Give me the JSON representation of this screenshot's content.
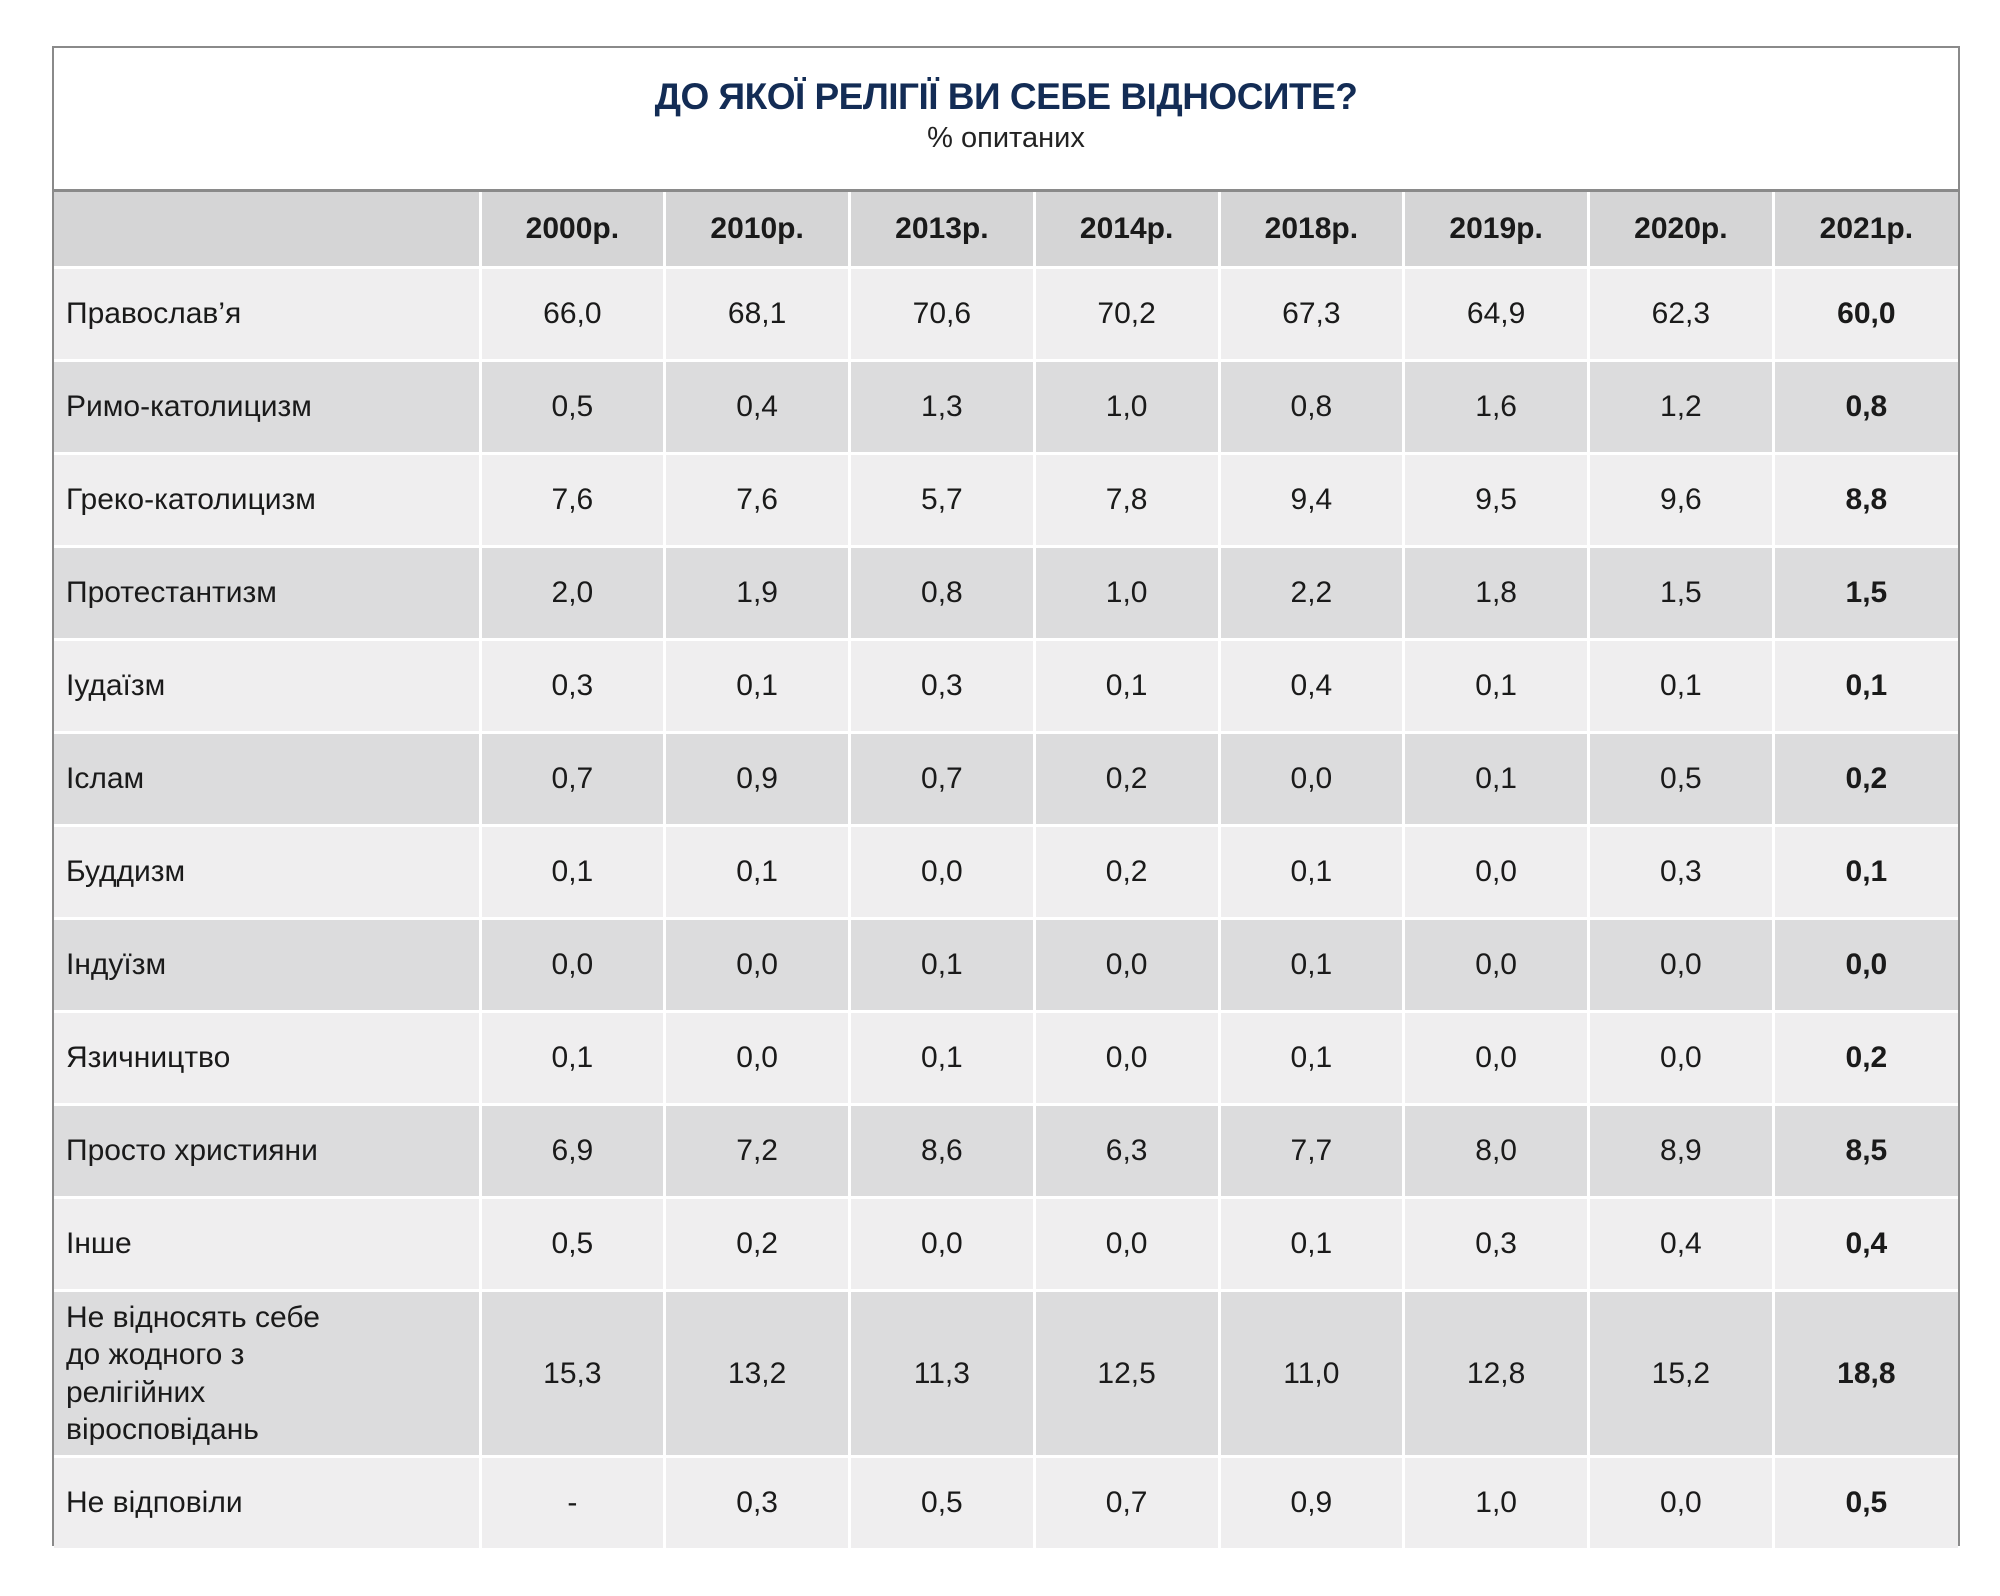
{
  "title": "ДО ЯКОЇ РЕЛІГІЇ ВИ СЕБЕ ВІДНОСИТЕ?",
  "subtitle": "% опитаних",
  "columns": [
    "2000р.",
    "2010р.",
    "2013р.",
    "2014р.",
    "2018р.",
    "2019р.",
    "2020р.",
    "2021р."
  ],
  "rows": [
    {
      "label": "Православ’я",
      "values": [
        "66,0",
        "68,1",
        "70,6",
        "70,2",
        "67,3",
        "64,9",
        "62,3",
        "60,0"
      ]
    },
    {
      "label": "Римо-католицизм",
      "values": [
        "0,5",
        "0,4",
        "1,3",
        "1,0",
        "0,8",
        "1,6",
        "1,2",
        "0,8"
      ]
    },
    {
      "label": "Греко-католицизм",
      "values": [
        "7,6",
        "7,6",
        "5,7",
        "7,8",
        "9,4",
        "9,5",
        "9,6",
        "8,8"
      ]
    },
    {
      "label": "Протестантизм",
      "values": [
        "2,0",
        "1,9",
        "0,8",
        "1,0",
        "2,2",
        "1,8",
        "1,5",
        "1,5"
      ]
    },
    {
      "label": "Іудаїзм",
      "values": [
        "0,3",
        "0,1",
        "0,3",
        "0,1",
        "0,4",
        "0,1",
        "0,1",
        "0,1"
      ]
    },
    {
      "label": "Іслам",
      "values": [
        "0,7",
        "0,9",
        "0,7",
        "0,2",
        "0,0",
        "0,1",
        "0,5",
        "0,2"
      ]
    },
    {
      "label": "Буддизм",
      "values": [
        "0,1",
        "0,1",
        "0,0",
        "0,2",
        "0,1",
        "0,0",
        "0,3",
        "0,1"
      ]
    },
    {
      "label": "Індуїзм",
      "values": [
        "0,0",
        "0,0",
        "0,1",
        "0,0",
        "0,1",
        "0,0",
        "0,0",
        "0,0"
      ]
    },
    {
      "label": "Язичництво",
      "values": [
        "0,1",
        "0,0",
        "0,1",
        "0,0",
        "0,1",
        "0,0",
        "0,0",
        "0,2"
      ]
    },
    {
      "label": "Просто християни",
      "values": [
        "6,9",
        "7,2",
        "8,6",
        "6,3",
        "7,7",
        "8,0",
        "8,9",
        "8,5"
      ]
    },
    {
      "label": "Інше",
      "values": [
        "0,5",
        "0,2",
        "0,0",
        "0,0",
        "0,1",
        "0,3",
        "0,4",
        "0,4"
      ]
    },
    {
      "label": "Не відносять себе до жодного з релігійних віросповідань",
      "values": [
        "15,3",
        "13,2",
        "11,3",
        "12,5",
        "11,0",
        "12,8",
        "15,2",
        "18,8"
      ]
    },
    {
      "label": "Не відповіли",
      "values": [
        "-",
        "0,3",
        "0,5",
        "0,7",
        "0,9",
        "1,0",
        "0,0",
        "0,5"
      ]
    }
  ]
}
